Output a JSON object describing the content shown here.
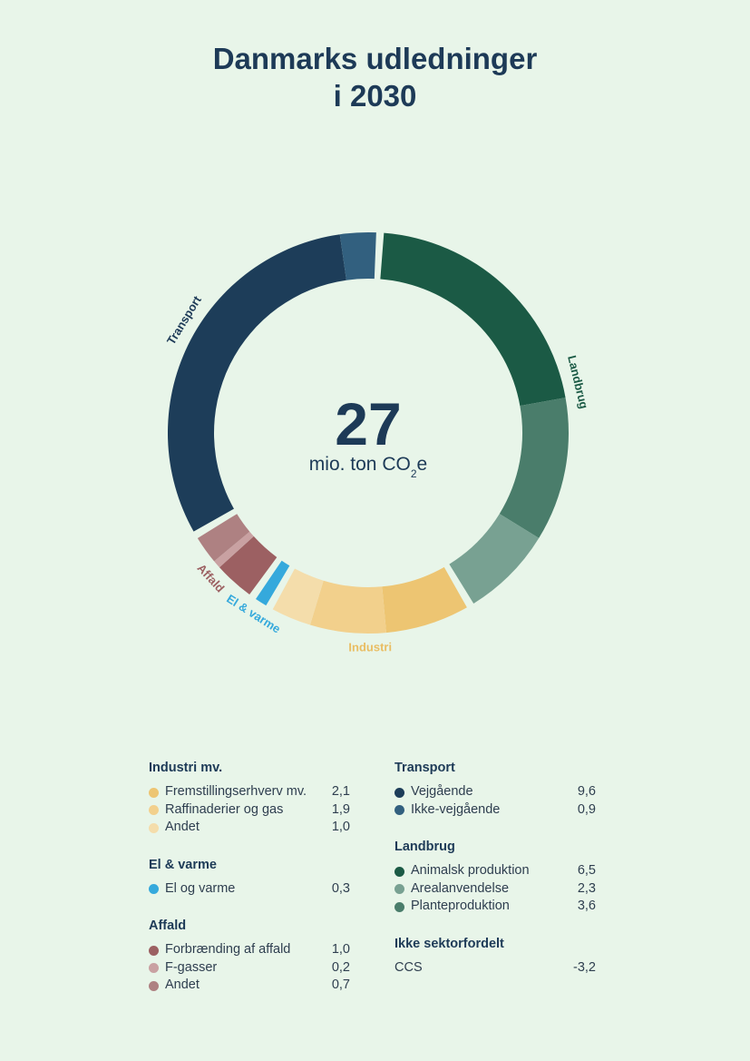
{
  "title_line1": "Danmarks udledninger",
  "title_line2": "i 2030",
  "chart_data": {
    "type": "donut",
    "center_value": "27",
    "center_unit_main": "mio. ton CO",
    "center_unit_sub": "2",
    "center_unit_tail": "e",
    "sectors": [
      {
        "name": "Landbrug",
        "items": [
          {
            "label": "Animalsk produktion",
            "value": 6.5,
            "color": "#1b5a45"
          },
          {
            "label": "Planteproduktion",
            "value": 3.6,
            "color": "#4a7d6b"
          },
          {
            "label": "Arealanvendelse",
            "value": 2.3,
            "color": "#78a192"
          }
        ],
        "label_color": "#1b5a45"
      },
      {
        "name": "Industri",
        "items": [
          {
            "label": "Fremstillingserhverv mv.",
            "value": 2.1,
            "color": "#edc572"
          },
          {
            "label": "Raffinaderier og gas",
            "value": 1.9,
            "color": "#f2d08c"
          },
          {
            "label": "Andet",
            "value": 1.0,
            "color": "#f4ddab"
          }
        ],
        "label_color": "#e9bd62"
      },
      {
        "name": "El & varme",
        "items": [
          {
            "label": "El og varme",
            "value": 0.3,
            "color": "#35a9dc"
          }
        ],
        "label_color": "#35a9dc"
      },
      {
        "name": "Affald",
        "items": [
          {
            "label": "Forbrænding af affald",
            "value": 1.0,
            "color": "#9c6062"
          },
          {
            "label": "F-gasser",
            "value": 0.2,
            "color": "#c9a1a2"
          },
          {
            "label": "Andet",
            "value": 0.7,
            "color": "#ae8182"
          }
        ],
        "label_color": "#9c6062"
      },
      {
        "name": "Transport",
        "items": [
          {
            "label": "Vejgående",
            "value": 9.6,
            "color": "#1d3d59"
          },
          {
            "label": "Ikke-vejgående",
            "value": 0.9,
            "color": "#32607f"
          }
        ],
        "label_color": "#1d3a57"
      }
    ]
  },
  "legend": {
    "left": [
      {
        "title": "Industri mv.",
        "rows": [
          {
            "label": "Fremstillingserhverv mv.",
            "value": "2,1",
            "color": "#edc572"
          },
          {
            "label": "Raffinaderier og gas",
            "value": "1,9",
            "color": "#f2d08c"
          },
          {
            "label": "Andet",
            "value": "1,0",
            "color": "#f4ddab"
          }
        ]
      },
      {
        "title": "El & varme",
        "rows": [
          {
            "label": "El og varme",
            "value": "0,3",
            "color": "#35a9dc"
          }
        ]
      },
      {
        "title": "Affald",
        "rows": [
          {
            "label": "Forbrænding af affald",
            "value": "1,0",
            "color": "#9c6062"
          },
          {
            "label": "F-gasser",
            "value": "0,2",
            "color": "#c9a1a2"
          },
          {
            "label": "Andet",
            "value": "0,7",
            "color": "#ae8182"
          }
        ]
      }
    ],
    "right": [
      {
        "title": "Transport",
        "rows": [
          {
            "label": "Vejgående",
            "value": "9,6",
            "color": "#1d3d59"
          },
          {
            "label": "Ikke-vejgående",
            "value": "0,9",
            "color": "#32607f"
          }
        ]
      },
      {
        "title": "Landbrug",
        "rows": [
          {
            "label": "Animalsk produktion",
            "value": "6,5",
            "color": "#1b5a45"
          },
          {
            "label": "Arealanvendelse",
            "value": "2,3",
            "color": "#78a192"
          },
          {
            "label": "Planteproduktion",
            "value": "3,6",
            "color": "#4a7d6b"
          }
        ]
      },
      {
        "title": "Ikke sektorfordelt",
        "rows": [
          {
            "label": "CCS",
            "value": "-3,2",
            "color": ""
          }
        ]
      }
    ]
  }
}
